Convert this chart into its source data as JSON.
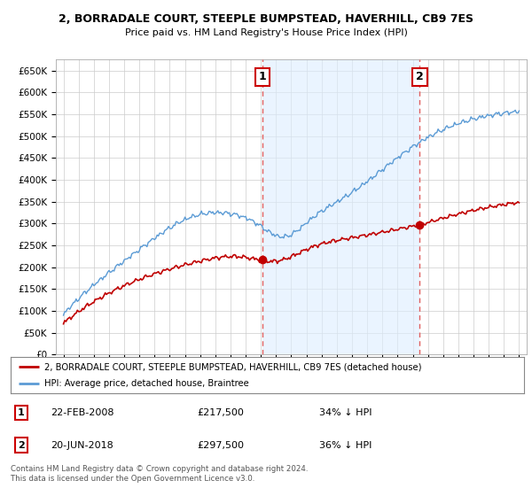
{
  "title": "2, BORRADALE COURT, STEEPLE BUMPSTEAD, HAVERHILL, CB9 7ES",
  "subtitle": "Price paid vs. HM Land Registry's House Price Index (HPI)",
  "ylim": [
    0,
    675000
  ],
  "yticks": [
    0,
    50000,
    100000,
    150000,
    200000,
    250000,
    300000,
    350000,
    400000,
    450000,
    500000,
    550000,
    600000,
    650000
  ],
  "ytick_labels": [
    "£0",
    "£50K",
    "£100K",
    "£150K",
    "£200K",
    "£250K",
    "£300K",
    "£350K",
    "£400K",
    "£450K",
    "£500K",
    "£550K",
    "£600K",
    "£650K"
  ],
  "hpi_color": "#5b9bd5",
  "price_color": "#c00000",
  "vline_color": "#e06060",
  "shade_color": "#ddeeff",
  "sale1_date_x": 2008.12,
  "sale1_price": 217500,
  "sale2_date_x": 2018.46,
  "sale2_price": 297500,
  "legend_label_red": "2, BORRADALE COURT, STEEPLE BUMPSTEAD, HAVERHILL, CB9 7ES (detached house)",
  "legend_label_blue": "HPI: Average price, detached house, Braintree",
  "annotation1_date": "22-FEB-2008",
  "annotation1_price": "£217,500",
  "annotation1_pct": "34% ↓ HPI",
  "annotation2_date": "20-JUN-2018",
  "annotation2_price": "£297,500",
  "annotation2_pct": "36% ↓ HPI",
  "footer": "Contains HM Land Registry data © Crown copyright and database right 2024.\nThis data is licensed under the Open Government Licence v3.0.",
  "xmin": 1994.5,
  "xmax": 2025.5,
  "background_color": "#ffffff",
  "grid_color": "#cccccc"
}
